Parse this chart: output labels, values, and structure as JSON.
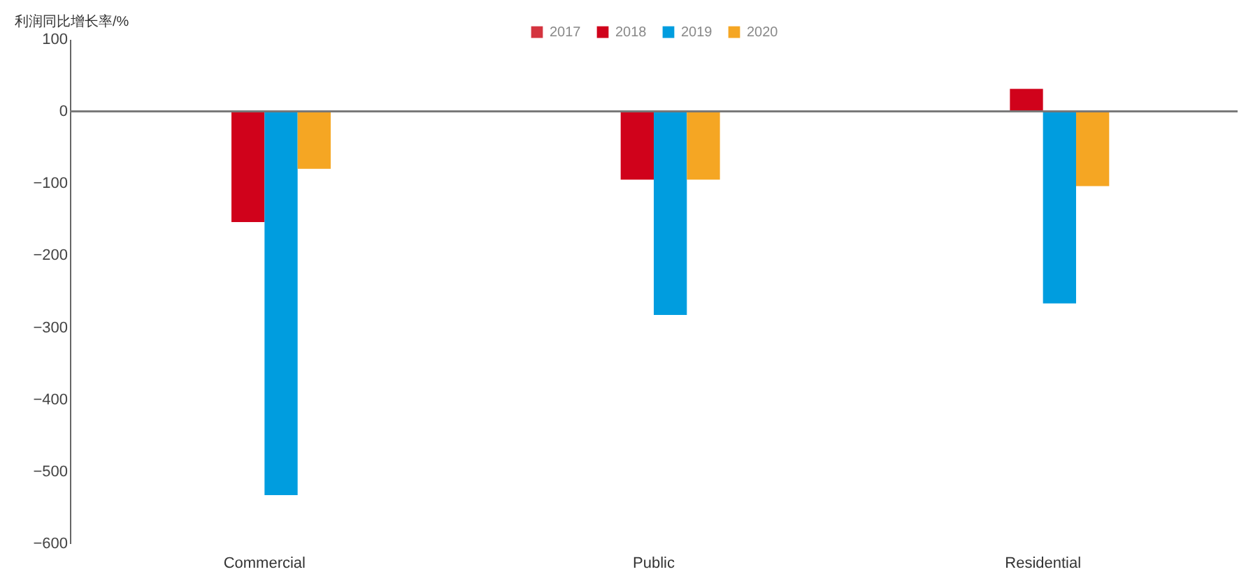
{
  "chart_data": {
    "type": "bar",
    "ylabel": "利润同比增长率/%",
    "categories": [
      "Commercial",
      "Public",
      "Residential"
    ],
    "series": [
      {
        "name": "2017",
        "color": "#d4343f",
        "values": [
          null,
          null,
          null
        ]
      },
      {
        "name": "2018",
        "color": "#d0021b",
        "values": [
          -154,
          -95,
          31
        ]
      },
      {
        "name": "2019",
        "color": "#009ddf",
        "values": [
          -533,
          -283,
          -267
        ]
      },
      {
        "name": "2020",
        "color": "#f5a623",
        "values": [
          -80,
          -95,
          -104
        ]
      }
    ],
    "ylim": [
      -600,
      100
    ],
    "yticks": [
      -600,
      -500,
      -400,
      -300,
      -200,
      -100,
      0,
      100
    ],
    "ref_lines": [
      {
        "axis": "y",
        "value": 0,
        "color": "#777777"
      }
    ],
    "legend": "top",
    "grid": false
  }
}
